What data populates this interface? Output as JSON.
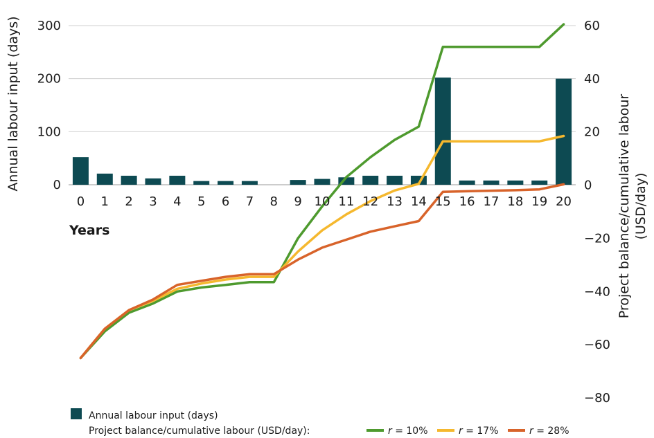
{
  "chart_data": {
    "type": "bar+line",
    "xlabel": "Years",
    "ylabel_left": "Annual labour input (days)",
    "ylabel_right_lines": [
      "Project balance/cumulative labour",
      "(USD/day)"
    ],
    "x": [
      0,
      1,
      2,
      3,
      4,
      5,
      6,
      7,
      8,
      9,
      10,
      11,
      12,
      13,
      14,
      15,
      16,
      17,
      18,
      19,
      20
    ],
    "y_left": {
      "min": 0,
      "max": 300,
      "ticks": [
        0,
        100,
        200,
        300
      ]
    },
    "y_right": {
      "min": -80,
      "max": 60,
      "ticks": [
        60,
        40,
        20,
        0,
        -20,
        -40,
        -60,
        -80
      ],
      "tick_labels": [
        "60",
        "40",
        "20",
        "0",
        "−20",
        "−40",
        "−60",
        "−80"
      ]
    },
    "bars": {
      "name": "Annual labour input (days)",
      "color": "#0d4a52",
      "values": [
        52,
        21,
        17,
        12,
        17,
        7,
        7,
        7,
        0,
        9,
        11,
        14,
        17,
        17,
        17,
        202,
        8,
        8,
        8,
        8,
        200
      ]
    },
    "lines_legend_prefix": "Project balance/cumulative labour (USD/day):",
    "series": [
      {
        "r_label": "r",
        "r_value": " = 10%",
        "color": "#4e9a2e",
        "values": [
          -65,
          -55,
          -48,
          -44.5,
          -40,
          -38.5,
          -37.5,
          -36.5,
          -36.5,
          -20,
          -8,
          3,
          10.5,
          17,
          22,
          52,
          52,
          52,
          52,
          52,
          60.5
        ]
      },
      {
        "r_label": "r",
        "r_value": " = 17%",
        "color": "#f5b82e",
        "values": [
          -65,
          -54,
          -47,
          -43.5,
          -39,
          -37,
          -35.5,
          -34.5,
          -34.5,
          -25,
          -17,
          -11,
          -6,
          -2,
          0.5,
          16.5,
          16.5,
          16.5,
          16.5,
          16.5,
          18.5
        ]
      },
      {
        "r_label": "r",
        "r_value": " = 28%",
        "color": "#d8632a",
        "values": [
          -65,
          -54,
          -47,
          -43,
          -37.5,
          -36,
          -34.5,
          -33.5,
          -33.5,
          -28,
          -23.5,
          -20.5,
          -17.5,
          -15.5,
          -13.5,
          -2.5,
          -2.3,
          -2.1,
          -1.9,
          -1.6,
          0.3
        ]
      }
    ]
  }
}
